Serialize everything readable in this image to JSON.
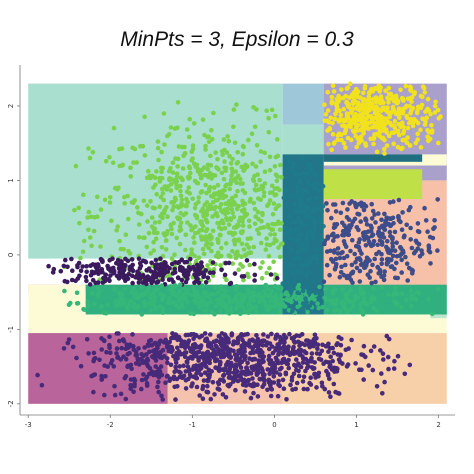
{
  "chart_data": {
    "type": "scatter",
    "title": "MinPts = 3, Epsilon = 0.3",
    "xlabel": "",
    "ylabel": "",
    "xlim": [
      -3.1,
      2.2
    ],
    "ylim": [
      -2.15,
      2.55
    ],
    "x_ticks": [
      "-3",
      "-2",
      "-1",
      "0",
      "1",
      "2"
    ],
    "y_ticks": [
      "2",
      "1",
      "0",
      "-1",
      "-2"
    ],
    "x_tick_values": [
      -3,
      -2,
      -1,
      0,
      1,
      2
    ],
    "y_tick_values": [
      2,
      1,
      0,
      -1,
      -2
    ],
    "regions": [
      {
        "x0": -3.0,
        "x1": 0.1,
        "y0": -0.05,
        "y1": 2.3,
        "color": "#a8dfcf"
      },
      {
        "x0": 0.1,
        "x1": 0.6,
        "y0": 1.75,
        "y1": 2.3,
        "color": "#9ec7d9"
      },
      {
        "x0": 0.1,
        "x1": 0.6,
        "y0": -0.05,
        "y1": 1.75,
        "color": "#a8dfcf"
      },
      {
        "x0": 0.6,
        "x1": 2.1,
        "y0": 1.0,
        "y1": 2.3,
        "color": "#a9a1cc"
      },
      {
        "x0": 0.6,
        "x1": 2.1,
        "y0": -0.4,
        "y1": 1.0,
        "color": "#f7c1a9"
      },
      {
        "x0": -3.0,
        "x1": 2.1,
        "y0": -0.5,
        "y1": -0.4,
        "color": "#e8a0a8"
      },
      {
        "x0": -3.0,
        "x1": -2.3,
        "y0": -0.8,
        "y1": -0.4,
        "color": "#fdfbd6"
      },
      {
        "x0": -3.0,
        "x1": 2.1,
        "y0": -1.05,
        "y1": -0.8,
        "color": "#fdfbd6"
      },
      {
        "x0": -3.0,
        "x1": -1.3,
        "y0": -2.0,
        "y1": -1.05,
        "color": "#b9649a"
      },
      {
        "x0": -1.3,
        "x1": 0.1,
        "y0": -2.0,
        "y1": -1.05,
        "color": "#f5c2ad"
      },
      {
        "x0": 0.1,
        "x1": 2.1,
        "y0": -2.0,
        "y1": -1.05,
        "color": "#f7cfa9"
      },
      {
        "x0": -3.0,
        "x1": 2.1,
        "y0": -0.05,
        "y1": -0.4,
        "color": "#e7a3a2"
      },
      {
        "x0": 0.6,
        "x1": 2.1,
        "y0": 1.2,
        "y1": 1.35,
        "color": "#fdfbd6"
      },
      {
        "x0": 1.9,
        "x1": 2.1,
        "y0": -0.85,
        "y1": -0.6,
        "color": "#bde5cd"
      }
    ],
    "bands": [
      {
        "x0": -2.3,
        "x1": 2.1,
        "y0": -0.8,
        "y1": -0.4,
        "color": "#30b07e"
      },
      {
        "x0": 0.1,
        "x1": 0.6,
        "y0": -0.8,
        "y1": 1.35,
        "color": "#21768a"
      },
      {
        "x0": 0.6,
        "x1": 1.8,
        "y0": 0.75,
        "y1": 1.15,
        "color": "#bfe046"
      },
      {
        "x0": 0.6,
        "x1": 1.8,
        "y0": 1.25,
        "y1": 1.35,
        "color": "#1f6f80"
      }
    ],
    "clusters": [
      {
        "name": "",
        "color": "#7bd14e",
        "cx": -0.7,
        "cy": 0.55,
        "sx": 0.75,
        "sy": 0.6,
        "n": 900,
        "xmin": -2.6,
        "xmax": 0.1,
        "ymin": -0.35,
        "ymax": 2.1
      },
      {
        "name": "",
        "color": "#f2e21d",
        "cx": 1.2,
        "cy": 1.85,
        "sx": 0.4,
        "sy": 0.25,
        "n": 500,
        "xmin": 0.6,
        "xmax": 2.05,
        "ymin": 1.35,
        "ymax": 2.3
      },
      {
        "name": "",
        "color": "#3d4c8a",
        "cx": 1.1,
        "cy": 0.2,
        "sx": 0.45,
        "sy": 0.45,
        "n": 450,
        "xmin": 0.6,
        "xmax": 2.0,
        "ymin": -0.4,
        "ymax": 0.75
      },
      {
        "name": "",
        "color": "#472a7a",
        "cx": -0.6,
        "cy": -1.35,
        "sx": 0.8,
        "sy": 0.3,
        "n": 1100,
        "xmin": -2.9,
        "xmax": 1.9,
        "ymin": -1.95,
        "ymax": -1.05
      },
      {
        "name": "",
        "color": "#3b1b5e",
        "cx": -1.6,
        "cy": -0.2,
        "sx": 0.6,
        "sy": 0.15,
        "n": 400,
        "xmin": -2.8,
        "xmax": 0.1,
        "ymin": -0.4,
        "ymax": -0.05
      },
      {
        "name": "",
        "color": "#35b779",
        "cx": -0.4,
        "cy": -0.6,
        "sx": 1.1,
        "sy": 0.12,
        "n": 500,
        "xmin": -2.6,
        "xmax": 2.05,
        "ymin": -0.8,
        "ymax": -0.4
      },
      {
        "name": "",
        "color": "#1f7a8a",
        "cx": 0.35,
        "cy": 0.4,
        "sx": 0.12,
        "sy": 0.7,
        "n": 200,
        "xmin": 0.1,
        "xmax": 0.6,
        "ymin": -0.8,
        "ymax": 1.35
      }
    ]
  }
}
